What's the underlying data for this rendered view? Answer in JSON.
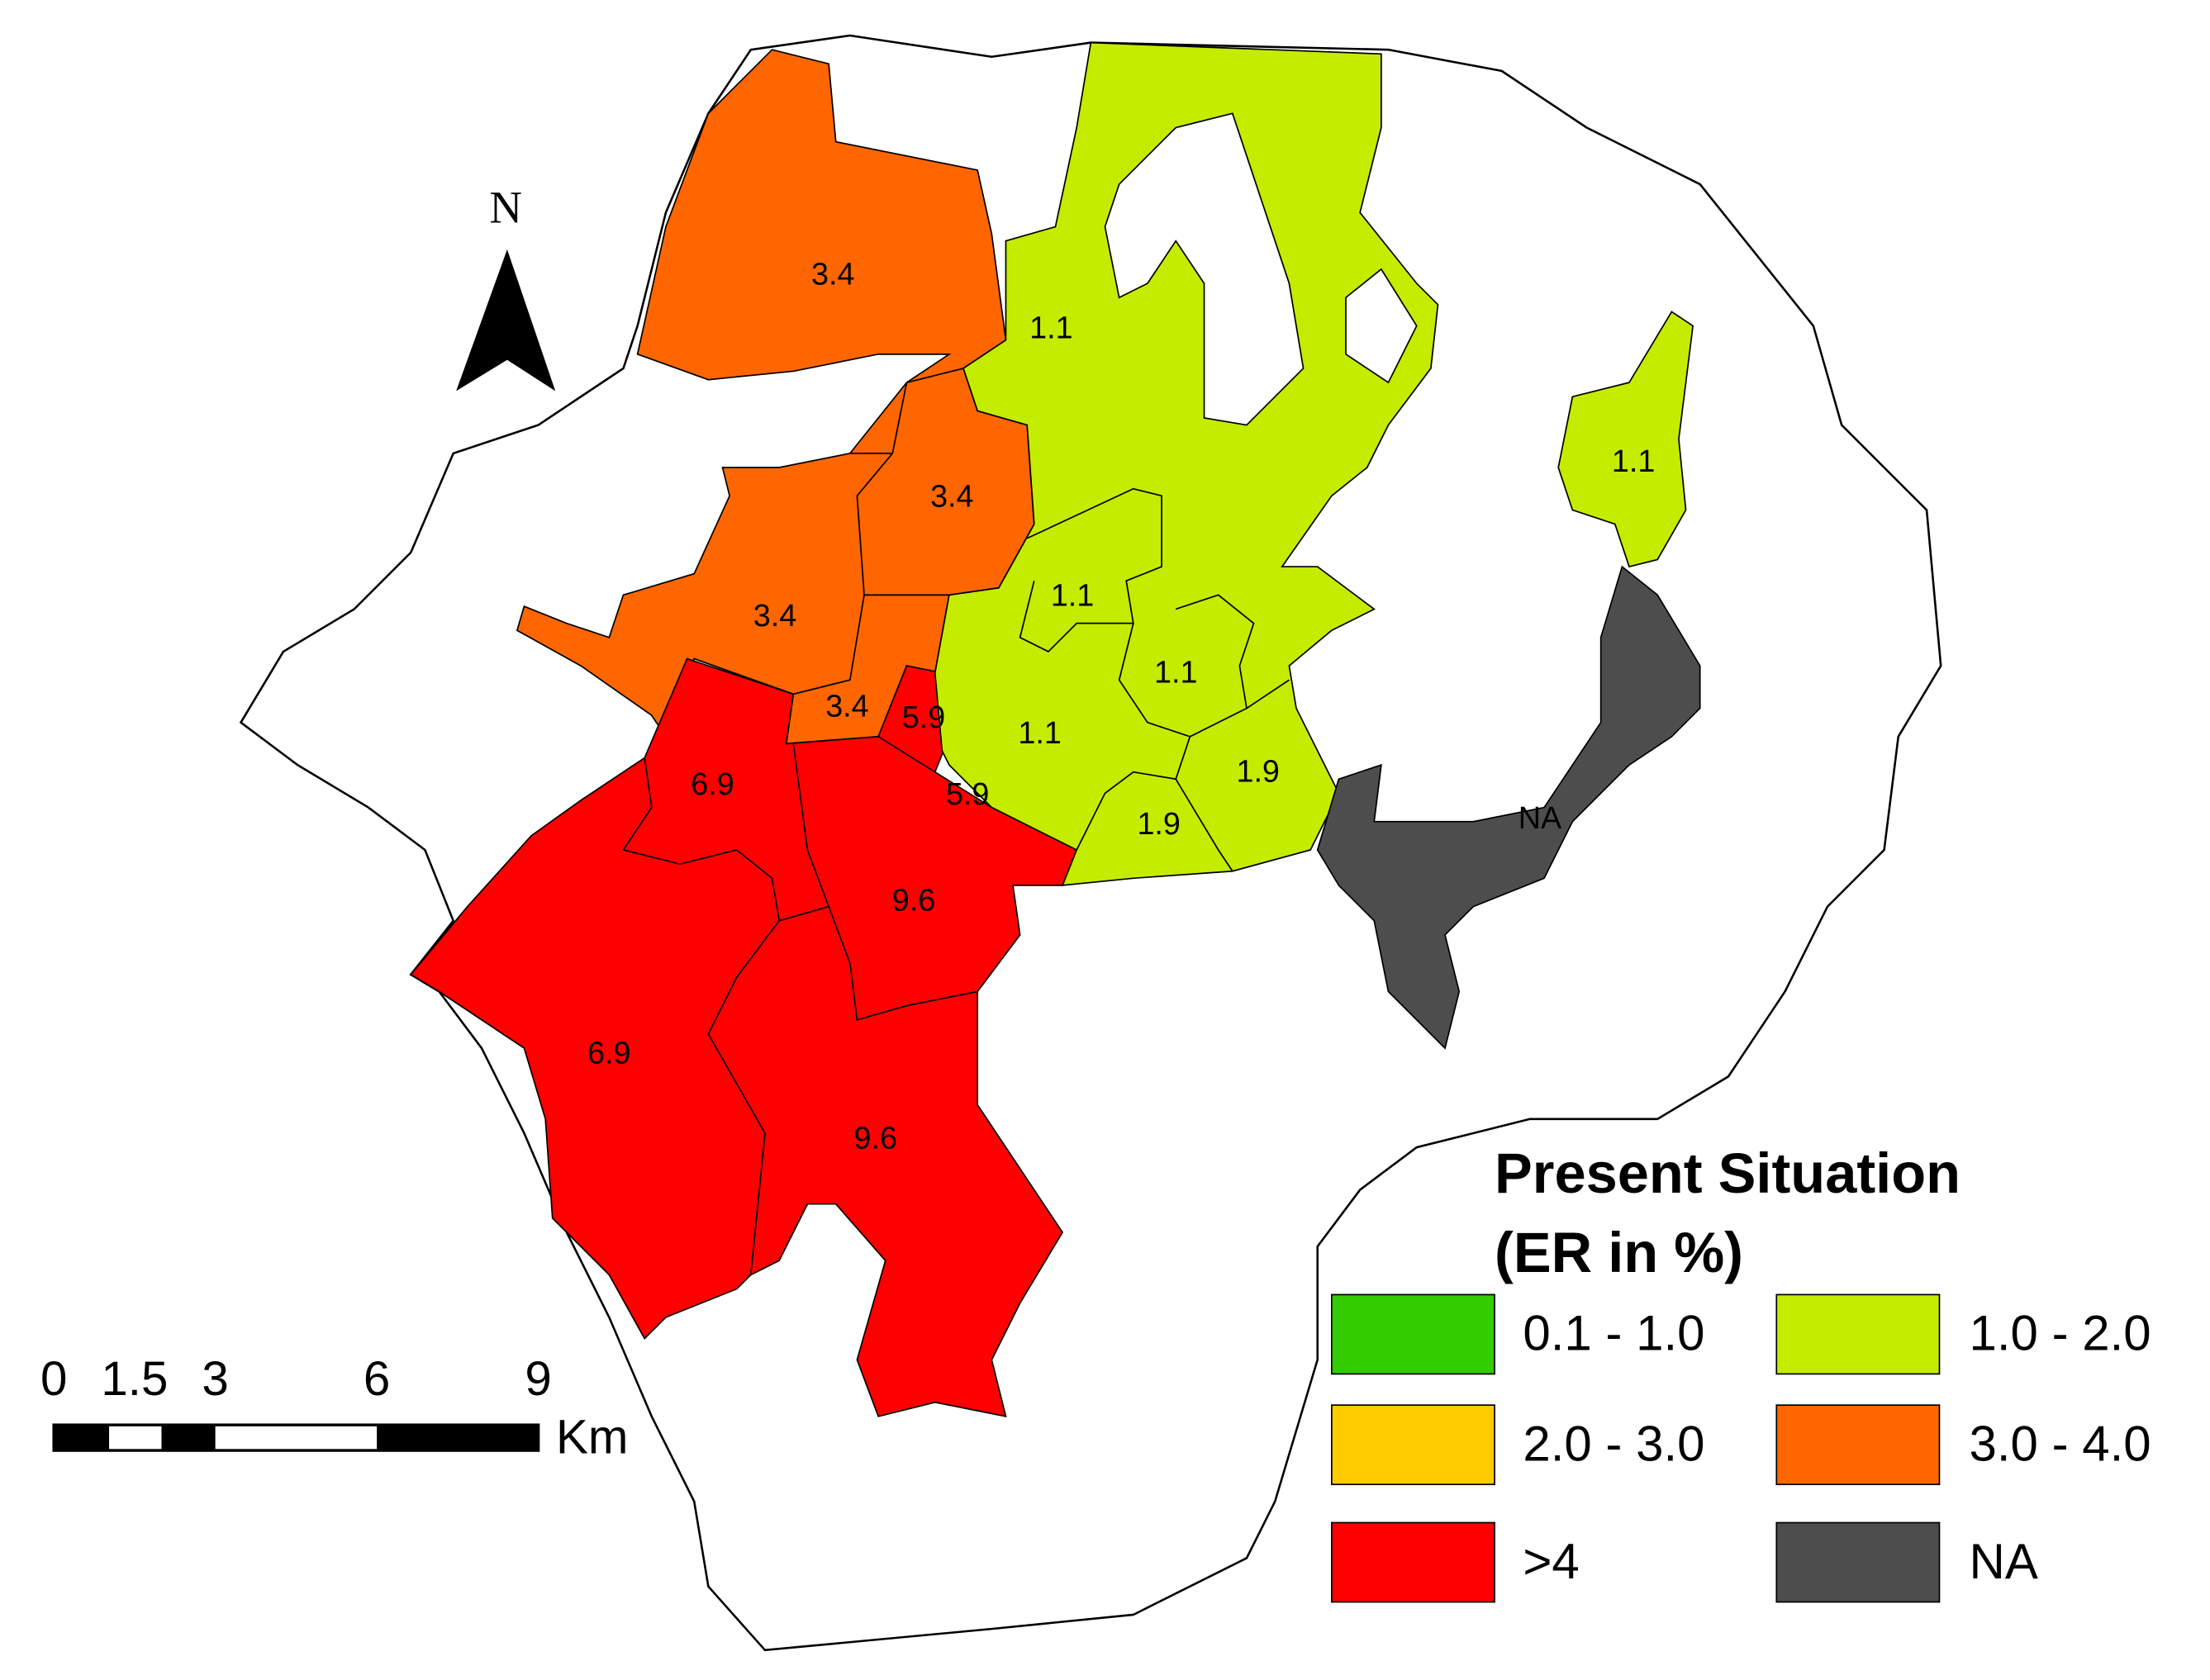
{
  "north_arrow": {
    "label": "N"
  },
  "scale_bar": {
    "ticks": [
      0,
      1.5,
      3,
      6,
      9
    ],
    "unit": "Km"
  },
  "legend": {
    "title": "Present Situation",
    "subtitle": "(ER in %)",
    "items": [
      {
        "label": "0.1 - 1.0",
        "color": "#33cc00"
      },
      {
        "label": "1.0 - 2.0",
        "color": "#c4ec00"
      },
      {
        "label": "2.0 - 3.0",
        "color": "#ffcc00"
      },
      {
        "label": "3.0 - 4.0",
        "color": "#ff6600"
      },
      {
        "label": ">4",
        "color": "#ff0000"
      },
      {
        "label": "NA",
        "color": "#4d4d4d"
      }
    ]
  },
  "regions": [
    {
      "label": "3.4"
    },
    {
      "label": "3.4"
    },
    {
      "label": "3.4"
    },
    {
      "label": "3.4"
    },
    {
      "label": "5.9"
    },
    {
      "label": "5.9"
    },
    {
      "label": "6.9"
    },
    {
      "label": "6.9"
    },
    {
      "label": "9.6"
    },
    {
      "label": "9.6"
    },
    {
      "label": "1.1"
    },
    {
      "label": "1.1"
    },
    {
      "label": "1.1"
    },
    {
      "label": "1.1"
    },
    {
      "label": "1.1"
    },
    {
      "label": "1.9"
    },
    {
      "label": "1.9"
    },
    {
      "label": "NA"
    }
  ]
}
